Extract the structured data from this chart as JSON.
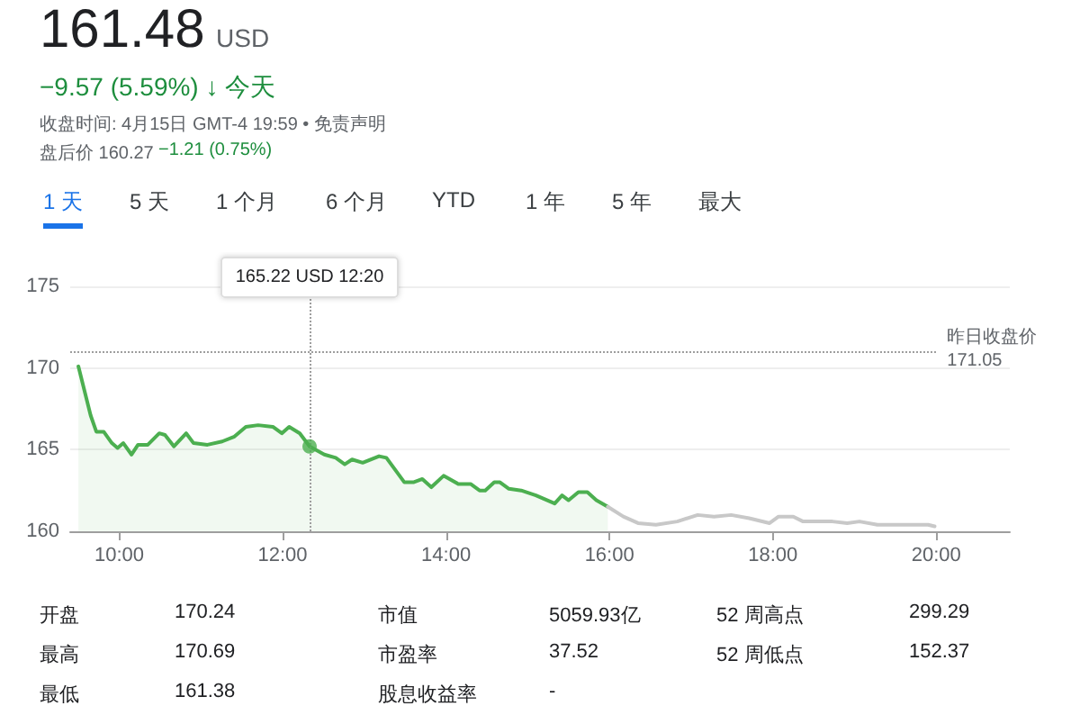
{
  "chart_data": {
    "type": "line",
    "title": "161.48",
    "annotations": [
      "USD",
      "−9.57 (5.59%) ↓ 今天",
      "收盘时间: 4月15日 GMT-4 19:59 • 免责声明",
      "盘后价 160.27",
      "−1.21 (0.75%)",
      "1 天",
      "5 天",
      "1 个月",
      "6 个月",
      "YTD",
      "1 年",
      "5 年",
      "最大",
      "开盘",
      "170.24",
      "市值",
      "5059.93亿",
      "52 周高点",
      "299.29",
      "最高",
      "170.69",
      "市盈率",
      "37.52",
      "52 周低点",
      "152.37",
      "最低",
      "161.38",
      "股息收益率",
      "-",
      "165.22 USD 12:20"
    ],
    "series": [
      {
        "type": "area",
        "color": "#4caf50",
        "x": [
          9.5,
          9.65,
          9.72,
          9.81,
          9.91,
          9.98,
          10.05,
          10.15,
          10.23,
          10.35,
          10.49,
          10.56,
          10.67,
          10.82,
          10.91,
          11.08,
          11.26,
          11.41,
          11.55,
          11.7,
          11.88,
          11.99,
          12.08,
          12.21,
          12.33,
          12.51,
          12.65,
          12.76,
          12.85,
          12.98,
          13.18,
          13.27,
          13.49,
          13.6,
          13.71,
          13.82,
          13.97,
          14.15,
          14.3,
          14.41,
          14.48,
          14.59,
          14.66,
          14.77,
          14.92,
          15.1,
          15.33,
          15.42,
          15.5,
          15.62,
          15.73,
          15.84,
          15.98
        ],
        "values": [
          170.1,
          167.1,
          166.1,
          166.1,
          165.4,
          165.1,
          165.4,
          164.7,
          165.3,
          165.3,
          166.0,
          165.9,
          165.2,
          166.0,
          165.4,
          165.3,
          165.5,
          165.8,
          166.4,
          166.5,
          166.4,
          166.0,
          166.4,
          166.0,
          165.2,
          164.7,
          164.5,
          164.1,
          164.4,
          164.2,
          164.6,
          164.5,
          163.0,
          163.0,
          163.2,
          162.7,
          163.4,
          162.9,
          162.9,
          162.5,
          162.5,
          163.0,
          163.0,
          162.6,
          162.5,
          162.2,
          161.7,
          162.2,
          161.9,
          162.4,
          162.4,
          161.9,
          161.5
        ]
      },
      {
        "color": "#c8c8c8",
        "x": [
          15.98,
          16.17,
          16.35,
          16.57,
          16.83,
          17.08,
          17.28,
          17.49,
          17.71,
          17.96,
          18.07,
          18.25,
          18.37,
          18.73,
          18.91,
          19.06,
          19.28,
          19.54,
          19.9,
          19.98
        ],
        "values": [
          161.5,
          160.9,
          160.5,
          160.4,
          160.6,
          161.0,
          160.9,
          161.0,
          160.8,
          160.5,
          160.9,
          160.9,
          160.6,
          160.6,
          160.5,
          160.6,
          160.4,
          160.4,
          160.4,
          160.3
        ]
      }
    ],
    "xlim": [
      9.4,
      20.9
    ],
    "ylim": [
      160,
      175
    ],
    "xticks": [
      {
        "value": 10,
        "label": "10:00"
      },
      {
        "value": 12,
        "label": "12:00"
      },
      {
        "value": 14,
        "label": "14:00"
      },
      {
        "value": 16,
        "label": "16:00"
      },
      {
        "value": 18,
        "label": "18:00"
      },
      {
        "value": 20,
        "label": "20:00"
      }
    ],
    "yticks": [
      160,
      165,
      170,
      175
    ],
    "ref_lines": [
      {
        "axis": "y",
        "value": 171.05,
        "label": "昨日收盘价\n171.05",
        "line_style": "dotted",
        "color": "#9e9e9e"
      },
      {
        "axis": "x",
        "value": 12.33,
        "label": null,
        "line_style": "dotted",
        "color": "#9e9e9e"
      }
    ],
    "grid": "y",
    "marker": "none",
    "line_style": "solid"
  }
}
